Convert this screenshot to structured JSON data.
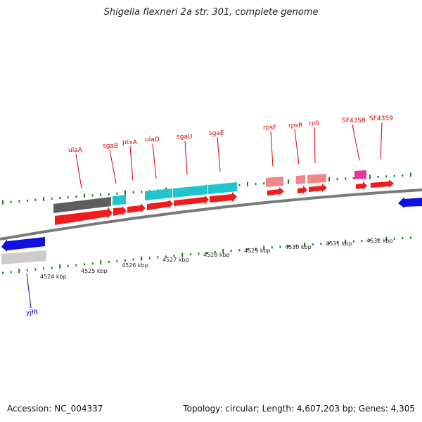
{
  "header": {
    "title": "Shigella flexneri 2a str. 301, complete genome"
  },
  "footer": {
    "accession": "Accession: NC_004337",
    "summary": "Topology: circular; Length: 4,607,203 bp; Genes: 4,305"
  },
  "colors": {
    "forward_label": "#d40000",
    "reverse_label": "#0000cc",
    "backbone": "#7a7a7a",
    "tick": "#1a7a1a",
    "cds_forward": "#ee1c1c",
    "cds_reverse": "#1010e0",
    "cyan": "#21c4cc",
    "dark_gray": "#5e5e5e",
    "light_gray": "#cccccc",
    "pink": "#ef8888",
    "magenta": "#e8359a"
  },
  "scale": {
    "ticks": [
      {
        "label": "4524 kbp"
      },
      {
        "label": "4525 kbp"
      },
      {
        "label": "4526 kbp"
      },
      {
        "label": "4527 kbp"
      },
      {
        "label": "4528 kbp"
      },
      {
        "label": "4529 kbp"
      },
      {
        "label": "4530 kbp"
      },
      {
        "label": "4531 kbp"
      },
      {
        "label": "4532 kbp"
      }
    ]
  },
  "genes": [
    {
      "name": "ulaA",
      "strand": "forward"
    },
    {
      "name": "sgaB",
      "strand": "forward"
    },
    {
      "name": "ptxA",
      "strand": "forward"
    },
    {
      "name": "ulaD",
      "strand": "forward"
    },
    {
      "name": "sgaU",
      "strand": "forward"
    },
    {
      "name": "sgaE",
      "strand": "forward"
    },
    {
      "name": "rpsF",
      "strand": "forward"
    },
    {
      "name": "rpsR",
      "strand": "forward"
    },
    {
      "name": "rplI",
      "strand": "forward"
    },
    {
      "name": "SF4358",
      "strand": "forward"
    },
    {
      "name": "SF4359",
      "strand": "forward"
    },
    {
      "name": "yjfR",
      "strand": "reverse"
    }
  ]
}
